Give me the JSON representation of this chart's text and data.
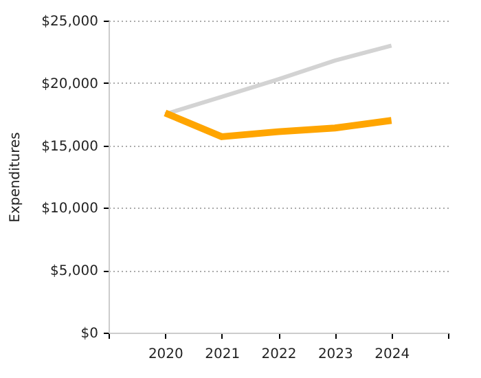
{
  "chart_data": {
    "type": "line",
    "ylabel": "Expenditures",
    "x": [
      2020,
      2021,
      2022,
      2023,
      2024
    ],
    "series": [
      {
        "color": "#d3d3d3",
        "values": [
          17500,
          18900,
          20300,
          21800,
          23000
        ]
      },
      {
        "color": "#ffa500",
        "values": [
          17600,
          15700,
          16100,
          16400,
          17000
        ]
      }
    ],
    "xlim": [
      2019,
      2025
    ],
    "xticks": [
      {
        "value": 2019,
        "label": null
      },
      2020,
      2021,
      2022,
      2023,
      2024,
      {
        "value": 2025,
        "label": null
      }
    ],
    "ylim": [
      0,
      25000
    ],
    "yticks": [
      {
        "value": 0,
        "label": "$0"
      },
      {
        "value": 5000,
        "label": "$5,000"
      },
      {
        "value": 10000,
        "label": "$10,000"
      },
      {
        "value": 15000,
        "label": "$15,000"
      },
      {
        "value": 20000,
        "label": "$20,000"
      },
      {
        "value": 25000,
        "label": "$25,000"
      }
    ],
    "grid": "y",
    "marker": "none",
    "line_style": "solid"
  }
}
